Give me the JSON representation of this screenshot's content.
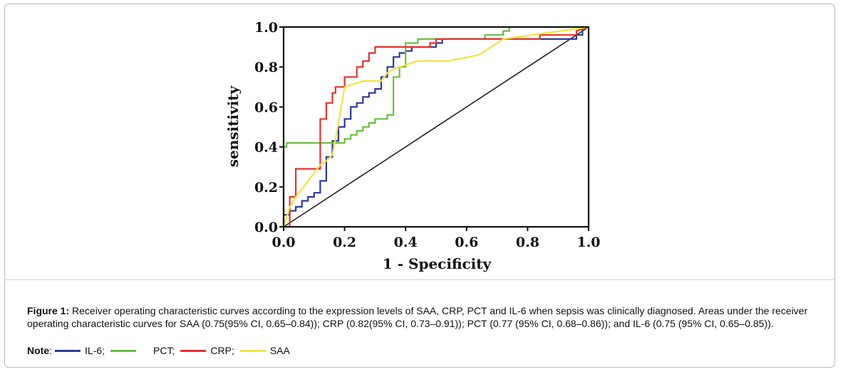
{
  "chart_data": {
    "type": "line",
    "title": "",
    "xlabel": "1 - Specificity",
    "ylabel": "sensitivity",
    "xlim": [
      0,
      1
    ],
    "ylim": [
      0,
      1
    ],
    "xticks": [
      "0.0",
      "0.2",
      "0.4",
      "0.6",
      "0.8",
      "1.0"
    ],
    "yticks": [
      "0.0",
      "0.2",
      "0.4",
      "0.6",
      "0.8",
      "1.0"
    ],
    "grid": false,
    "series": [
      {
        "name": "IL-6",
        "color": "#2b3a9c",
        "x": [
          0,
          0,
          0.02,
          0.02,
          0.04,
          0.04,
          0.06,
          0.06,
          0.08,
          0.08,
          0.1,
          0.1,
          0.12,
          0.12,
          0.14,
          0.14,
          0.16,
          0.16,
          0.18,
          0.18,
          0.2,
          0.2,
          0.22,
          0.22,
          0.24,
          0.24,
          0.26,
          0.26,
          0.28,
          0.28,
          0.3,
          0.3,
          0.32,
          0.32,
          0.34,
          0.34,
          0.36,
          0.36,
          0.38,
          0.38,
          0.4,
          0.4,
          0.42,
          0.42,
          0.5,
          0.5,
          0.52,
          0.52,
          0.6,
          0.6,
          0.96,
          0.96,
          0.98,
          0.98,
          1.0
        ],
        "y": [
          0,
          0.06,
          0.06,
          0.08,
          0.08,
          0.1,
          0.1,
          0.13,
          0.13,
          0.15,
          0.15,
          0.17,
          0.17,
          0.23,
          0.23,
          0.35,
          0.35,
          0.43,
          0.43,
          0.5,
          0.5,
          0.54,
          0.54,
          0.6,
          0.6,
          0.62,
          0.62,
          0.65,
          0.65,
          0.67,
          0.67,
          0.69,
          0.69,
          0.75,
          0.75,
          0.8,
          0.8,
          0.85,
          0.85,
          0.87,
          0.87,
          0.88,
          0.88,
          0.9,
          0.9,
          0.92,
          0.92,
          0.94,
          0.94,
          0.94,
          0.94,
          0.96,
          0.96,
          1.0,
          1.0
        ]
      },
      {
        "name": "PCT",
        "color": "#6abf40",
        "x": [
          0,
          0,
          0.01,
          0.01,
          0.2,
          0.2,
          0.22,
          0.22,
          0.24,
          0.24,
          0.26,
          0.26,
          0.28,
          0.28,
          0.3,
          0.3,
          0.34,
          0.34,
          0.36,
          0.36,
          0.38,
          0.38,
          0.4,
          0.4,
          0.44,
          0.44,
          0.66,
          0.66,
          0.72,
          0.72,
          0.74,
          0.74,
          0.78,
          0.78,
          1.0
        ],
        "y": [
          0,
          0.4,
          0.4,
          0.42,
          0.42,
          0.44,
          0.44,
          0.46,
          0.46,
          0.48,
          0.48,
          0.5,
          0.5,
          0.52,
          0.52,
          0.54,
          0.54,
          0.56,
          0.56,
          0.75,
          0.75,
          0.8,
          0.8,
          0.92,
          0.92,
          0.94,
          0.94,
          0.96,
          0.96,
          0.98,
          0.98,
          1.0,
          1.0,
          1.0,
          1.0
        ]
      },
      {
        "name": "CRP",
        "color": "#e8322a",
        "x": [
          0,
          0.02,
          0.02,
          0.04,
          0.04,
          0.12,
          0.12,
          0.14,
          0.14,
          0.16,
          0.16,
          0.17,
          0.17,
          0.2,
          0.2,
          0.24,
          0.24,
          0.26,
          0.26,
          0.28,
          0.28,
          0.3,
          0.3,
          0.48,
          0.48,
          0.5,
          0.5,
          0.8,
          0.8,
          0.84,
          0.84,
          0.96,
          0.96,
          1.0
        ],
        "y": [
          0,
          0,
          0.15,
          0.15,
          0.29,
          0.29,
          0.54,
          0.54,
          0.62,
          0.62,
          0.67,
          0.67,
          0.7,
          0.7,
          0.75,
          0.75,
          0.8,
          0.8,
          0.83,
          0.83,
          0.87,
          0.87,
          0.9,
          0.9,
          0.92,
          0.92,
          0.94,
          0.94,
          0.94,
          0.94,
          0.96,
          0.96,
          0.98,
          1.0
        ]
      },
      {
        "name": "SAA",
        "color": "#f2e33c",
        "x": [
          0,
          0.02,
          0.02,
          0.04,
          0.04,
          0.08,
          0.08,
          0.1,
          0.1,
          0.12,
          0.12,
          0.14,
          0.14,
          0.16,
          0.16,
          0.18,
          0.18,
          0.2,
          0.2,
          0.22,
          0.22,
          0.26,
          0.26,
          0.28,
          0.28,
          0.32,
          0.32,
          0.34,
          0.34,
          0.36,
          0.36,
          0.38,
          0.38,
          0.44,
          0.44,
          0.54,
          0.54,
          0.64,
          0.64,
          0.66,
          0.66,
          0.68,
          0.68,
          0.7,
          0.7,
          0.72,
          0.72,
          1.0
        ],
        "y": [
          0,
          0.1,
          0.1,
          0.15,
          0.15,
          0.23,
          0.23,
          0.27,
          0.27,
          0.31,
          0.31,
          0.33,
          0.33,
          0.36,
          0.36,
          0.52,
          0.52,
          0.7,
          0.7,
          0.71,
          0.71,
          0.73,
          0.73,
          0.73,
          0.73,
          0.73,
          0.73,
          0.77,
          0.77,
          0.79,
          0.79,
          0.8,
          0.8,
          0.83,
          0.83,
          0.83,
          0.83,
          0.86,
          0.86,
          0.88,
          0.88,
          0.9,
          0.9,
          0.92,
          0.92,
          0.94,
          0.94,
          1.0
        ]
      }
    ],
    "reference_line": {
      "x": [
        0,
        1
      ],
      "y": [
        0,
        1
      ],
      "color": "#222222"
    }
  },
  "caption": {
    "label": "Figure 1:",
    "text": "Receiver operating characteristic curves according to the expression levels of SAA, CRP, PCT and IL-6 when sepsis was clinically diagnosed. Areas under the receiver operating characteristic curves for SAA (0.75(95% CI, 0.65–0.84)); CRP (0.82(95% CI, 0.73–0.91)); PCT (0.77 (95% CI, 0.68–0.86)); and IL-6 (0.75 (95% CI, 0.65–0.85))."
  },
  "note": {
    "label": "Note",
    "sep": ":",
    "items": [
      {
        "text": "IL-6;",
        "color": "#2b3a9c"
      },
      {
        "text": "PCT;",
        "color": "#6abf40"
      },
      {
        "text": "CRP;",
        "color": "#e8322a"
      },
      {
        "text": "SAA",
        "color": "#f2e33c"
      }
    ]
  }
}
